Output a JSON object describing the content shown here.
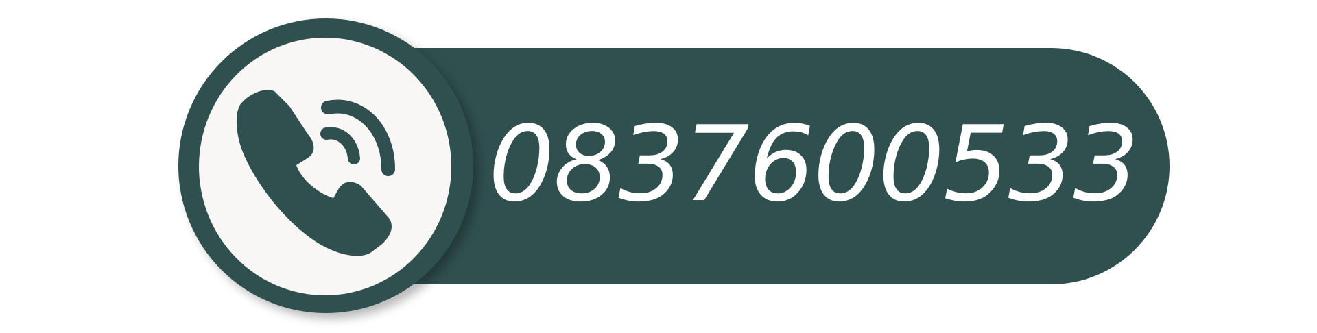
{
  "contact": {
    "phone_number": "0837600533",
    "icon": "phone-handset-with-signal-icon"
  },
  "colors": {
    "primary": "#304f4f",
    "foreground": "#ffffff",
    "disc": "#f8f7f6"
  }
}
